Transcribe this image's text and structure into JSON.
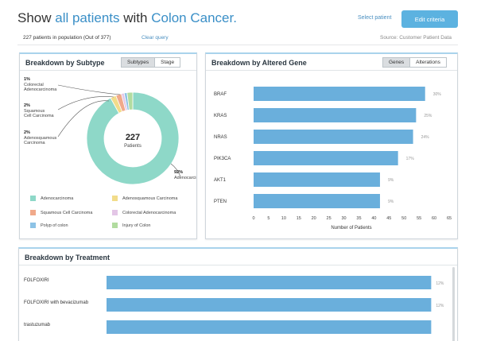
{
  "header": {
    "title_prefix": "Show ",
    "title_link1": "all patients",
    "title_mid": " with ",
    "title_link2": "Colon Cancer.",
    "select_patient": "Select patient",
    "edit_criteria": "Edit criteria"
  },
  "subbar": {
    "count_text": "227 patients in population (Out of 377)",
    "clear_query": "Clear query",
    "source": "Source: Customer Patient Data"
  },
  "subtype_panel": {
    "title": "Breakdown by Subtype",
    "toggle": [
      "Subtypes",
      "Stage"
    ],
    "active_toggle": "Subtypes",
    "center_value": "227",
    "center_label": "Patients",
    "slices": [
      {
        "name": "Adenocarcinoma",
        "percent": 92,
        "color": "#8ed8c8"
      },
      {
        "name": "Adenosquamous Carcinoma",
        "percent": 2,
        "color": "#f2dc8a"
      },
      {
        "name": "Squamous Cell Carcinoma",
        "percent": 2,
        "color": "#f0a98a"
      },
      {
        "name": "Colorectal Adenocarcinoma",
        "percent": 1,
        "color": "#e3c6e6"
      },
      {
        "name": "Polyp of colon",
        "percent": 1,
        "color": "#8dc3e6"
      },
      {
        "name": "Injury of Colon",
        "percent": 2,
        "color": "#b2dca0"
      }
    ],
    "callouts": [
      {
        "percent": "1%",
        "lines": [
          "Colorectal",
          "Adenocarcinoma"
        ]
      },
      {
        "percent": "2%",
        "lines": [
          "Squamous",
          "Cell Carcinoma"
        ]
      },
      {
        "percent": "2%",
        "lines": [
          "Adenosquamous",
          "Carcinoma"
        ]
      },
      {
        "percent": "92%",
        "lines": [
          "Adenocarcinoma"
        ]
      }
    ],
    "legend": [
      {
        "label": "Adenocarcinoma",
        "color": "#8ed8c8"
      },
      {
        "label": "Adenosquamous Carcinoma",
        "color": "#f2dc8a"
      },
      {
        "label": "Squamous Cell Carcinoma",
        "color": "#f0a98a"
      },
      {
        "label": "Colorectal Adenocarcinoma",
        "color": "#e3c6e6"
      },
      {
        "label": "Polyp of colon",
        "color": "#8dc3e6"
      },
      {
        "label": "Injury of Colon",
        "color": "#b2dca0"
      }
    ]
  },
  "gene_panel": {
    "title": "Breakdown by Altered Gene",
    "toggle": [
      "Genes",
      "Alterations"
    ],
    "active_toggle": "Genes",
    "bar_color": "#6aafdc"
  },
  "treatment_panel": {
    "title": "Breakdown by Treatment",
    "bar_color": "#6aafdc"
  },
  "chart_data": [
    {
      "type": "pie",
      "labels": [
        "Adenocarcinoma",
        "Adenosquamous Carcinoma",
        "Squamous Cell Carcinoma",
        "Colorectal Adenocarcinoma",
        "Polyp of colon",
        "Injury of Colon"
      ],
      "values": [
        92,
        2,
        2,
        1,
        1,
        2
      ],
      "title": "Breakdown by Subtype"
    },
    {
      "type": "bar",
      "orientation": "horizontal",
      "title": "Breakdown by Altered Gene",
      "categories": [
        "BRAF",
        "KRAS",
        "NRAS",
        "PIK3CA",
        "AKT1",
        "PTEN"
      ],
      "values": [
        57,
        54,
        53,
        48,
        42,
        42
      ],
      "value_labels": [
        "30%",
        "25%",
        "24%",
        "17%",
        "9%",
        "9%"
      ],
      "xlabel": "Number of Patients",
      "xlim": [
        0,
        65
      ],
      "xticks": [
        0,
        5,
        10,
        15,
        20,
        25,
        30,
        35,
        40,
        45,
        50,
        55,
        60,
        65
      ]
    },
    {
      "type": "bar",
      "orientation": "horizontal",
      "title": "Breakdown by Treatment",
      "categories": [
        "FOLFOXIRI",
        "FOLFOXIRI with bevacizumab",
        "trastuzumab"
      ],
      "values": [
        12,
        12,
        12
      ],
      "value_labels": [
        "12%",
        "12%",
        ""
      ],
      "xlim": [
        0,
        12.4
      ]
    }
  ]
}
